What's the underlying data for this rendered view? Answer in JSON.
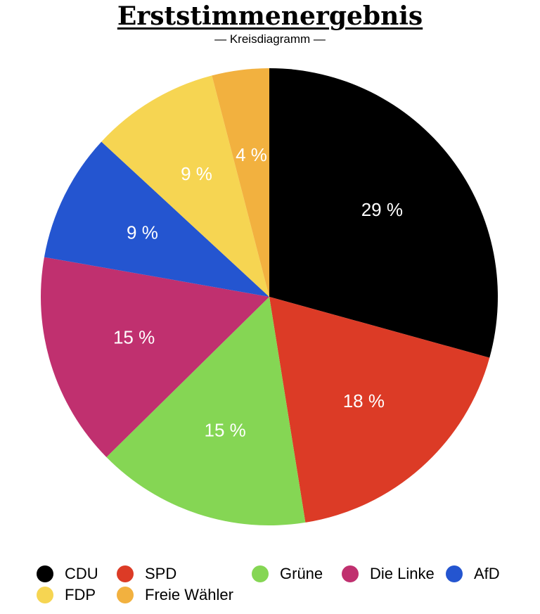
{
  "chart_data": {
    "type": "pie",
    "title": "Erststimmenergebnis",
    "subtitle": "— Kreisdiagramm —",
    "categories": [
      "CDU",
      "SPD",
      "Grüne",
      "Die Linke",
      "AfD",
      "FDP",
      "Freie Wähler"
    ],
    "values": [
      29,
      18,
      15,
      15,
      9,
      9,
      4
    ],
    "value_labels": [
      "29 %",
      "18 %",
      "15 %",
      "15 %",
      "9 %",
      "9 %",
      "4 %"
    ],
    "colors": [
      "#000000",
      "#dc3b26",
      "#85d654",
      "#c0306f",
      "#2455d0",
      "#f6d552",
      "#f2b13f"
    ],
    "start_angle": "12 o'clock",
    "direction": "clockwise",
    "legend_position": "bottom"
  }
}
